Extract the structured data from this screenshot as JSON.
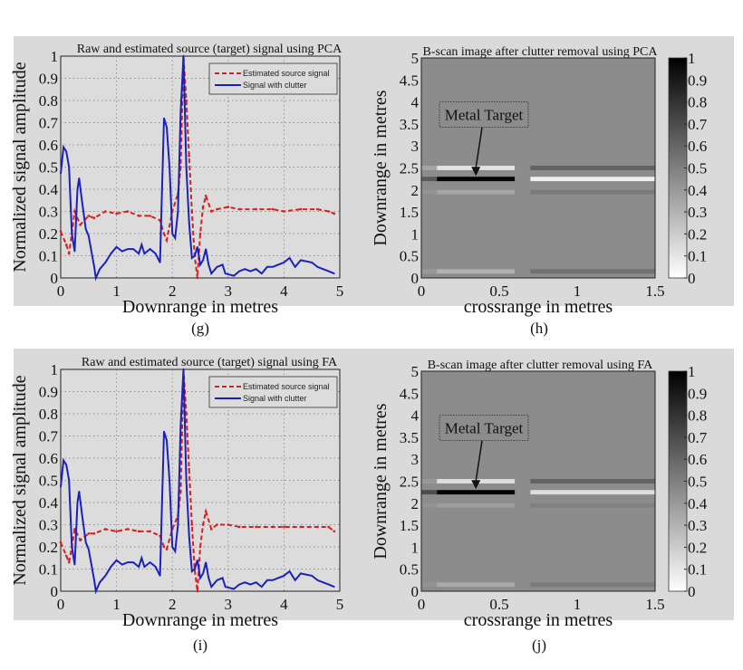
{
  "chart_data": [
    {
      "type": "line",
      "panel_label": "(g)",
      "title": "Raw and estimated source (target) signal using PCA",
      "xlabel": "Downrange in metres",
      "ylabel": "Normalized signal amplitude",
      "xlim": [
        0,
        5
      ],
      "ylim": [
        0,
        1
      ],
      "xticks": [
        "0",
        "1",
        "2",
        "3",
        "4",
        "5"
      ],
      "yticks": [
        "0",
        "0.1",
        "0.2",
        "0.3",
        "0.4",
        "0.5",
        "0.6",
        "0.7",
        "0.8",
        "0.9",
        "1"
      ],
      "grid": true,
      "legend_position": "top-right",
      "series": [
        {
          "name": "Estimated source signal",
          "color": "#d42020",
          "style": "dashed-x",
          "x": [
            0,
            0.1,
            0.15,
            0.2,
            0.25,
            0.35,
            0.5,
            0.6,
            0.8,
            1.0,
            1.2,
            1.4,
            1.6,
            1.78,
            1.85,
            1.9,
            2.0,
            2.1,
            2.15,
            2.2,
            2.25,
            2.3,
            2.35,
            2.4,
            2.45,
            2.5,
            2.55,
            2.6,
            2.7,
            2.8,
            3.0,
            3.2,
            3.5,
            3.8,
            4.0,
            4.3,
            4.6,
            4.8,
            4.9
          ],
          "y": [
            0.21,
            0.15,
            0.11,
            0.2,
            0.3,
            0.24,
            0.28,
            0.27,
            0.3,
            0.29,
            0.3,
            0.28,
            0.28,
            0.26,
            0.2,
            0.17,
            0.3,
            0.38,
            0.5,
            1.0,
            0.8,
            0.55,
            0.3,
            0.1,
            0,
            0.2,
            0.32,
            0.37,
            0.3,
            0.31,
            0.32,
            0.31,
            0.31,
            0.31,
            0.3,
            0.31,
            0.31,
            0.3,
            0.29
          ]
        },
        {
          "name": "Signal with clutter",
          "color": "#1a22b8",
          "style": "solid",
          "x": [
            0,
            0.05,
            0.1,
            0.15,
            0.2,
            0.25,
            0.3,
            0.33,
            0.38,
            0.45,
            0.5,
            0.6,
            0.63,
            0.7,
            0.8,
            0.9,
            1.0,
            1.1,
            1.2,
            1.3,
            1.4,
            1.45,
            1.5,
            1.6,
            1.7,
            1.78,
            1.85,
            1.9,
            1.95,
            2.0,
            2.05,
            2.1,
            2.15,
            2.2,
            2.25,
            2.3,
            2.35,
            2.4,
            2.45,
            2.5,
            2.55,
            2.6,
            2.65,
            2.7,
            2.8,
            2.9,
            2.95,
            3.1,
            3.2,
            3.3,
            3.4,
            3.5,
            3.6,
            3.7,
            3.8,
            3.9,
            4.0,
            4.05,
            4.1,
            4.15,
            4.2,
            4.3,
            4.5,
            4.6,
            4.7,
            4.8,
            4.9
          ],
          "y": [
            0.47,
            0.59,
            0.57,
            0.5,
            0.2,
            0.12,
            0.4,
            0.45,
            0.35,
            0.22,
            0.19,
            0.05,
            0,
            0.04,
            0.07,
            0.11,
            0.14,
            0.12,
            0.13,
            0.13,
            0.11,
            0.15,
            0.11,
            0.13,
            0.11,
            0.07,
            0.72,
            0.68,
            0.5,
            0.2,
            0.18,
            0.3,
            0.75,
            1.0,
            0.5,
            0.25,
            0.09,
            0.1,
            0.14,
            0.06,
            0.08,
            0.13,
            0.06,
            0.02,
            0.05,
            0.06,
            0.02,
            0.01,
            0.03,
            0.04,
            0.03,
            0.04,
            0.02,
            0.05,
            0.05,
            0.06,
            0.07,
            0.08,
            0.09,
            0.07,
            0.05,
            0.08,
            0.07,
            0.05,
            0.04,
            0.03,
            0.02
          ]
        }
      ]
    },
    {
      "type": "heatmap",
      "panel_label": "(h)",
      "title": "B-scan image after clutter removal using PCA",
      "xlabel": "crossrange in metres",
      "ylabel": "Downrange in metres",
      "xlim": [
        0,
        1.5
      ],
      "ylim": [
        0,
        5
      ],
      "xticks": [
        "0",
        "0.5",
        "1",
        "1.5"
      ],
      "yticks": [
        "0",
        "0.5",
        "1",
        "1.5",
        "2",
        "2.5",
        "3",
        "3.5",
        "4",
        "4.5",
        "5"
      ],
      "colorbar": {
        "range": [
          0,
          1
        ],
        "colormap": "gray-reversed",
        "ticks": [
          "0",
          "0.1",
          "0.2",
          "0.3",
          "0.4",
          "0.5",
          "0.6",
          "0.7",
          "0.8",
          "0.9",
          "1"
        ]
      },
      "background_value": 0.45,
      "annotation": {
        "text": "Metal Target",
        "points_to": [
          0.35,
          2.3
        ]
      },
      "crossrange_segments": [
        [
          0,
          0.1
        ],
        [
          0.1,
          0.6
        ],
        [
          0.6,
          0.7
        ],
        [
          0.7,
          1.5
        ]
      ],
      "bands": [
        {
          "downrange": [
            2.45,
            2.55
          ],
          "values": [
            0.35,
            0.1,
            0.45,
            0.62
          ]
        },
        {
          "downrange": [
            2.2,
            2.3
          ],
          "values": [
            0.65,
            1.0,
            0.45,
            0.05
          ]
        },
        {
          "downrange": [
            1.9,
            2.0
          ],
          "values": [
            0.42,
            0.35,
            0.45,
            0.52
          ]
        },
        {
          "downrange": [
            0.1,
            0.2
          ],
          "values": [
            0.4,
            0.3,
            0.45,
            0.56
          ]
        }
      ]
    },
    {
      "type": "line",
      "panel_label": "(i)",
      "title": "Raw and estimated source (target) signal using FA",
      "xlabel": "Downrange in metres",
      "ylabel": "Normalized signal amplitude",
      "xlim": [
        0,
        5
      ],
      "ylim": [
        0,
        1
      ],
      "xticks": [
        "0",
        "1",
        "2",
        "3",
        "4",
        "5"
      ],
      "yticks": [
        "0",
        "0.1",
        "0.2",
        "0.3",
        "0.4",
        "0.5",
        "0.6",
        "0.7",
        "0.8",
        "0.9",
        "1"
      ],
      "grid": true,
      "legend_position": "top-right",
      "series": [
        {
          "name": "Estimated source signal",
          "color": "#d42020",
          "style": "dashed-x",
          "x": [
            0,
            0.1,
            0.15,
            0.2,
            0.25,
            0.35,
            0.5,
            0.6,
            0.8,
            1.0,
            1.2,
            1.4,
            1.6,
            1.78,
            1.85,
            1.9,
            2.0,
            2.1,
            2.15,
            2.2,
            2.25,
            2.3,
            2.35,
            2.4,
            2.45,
            2.5,
            2.55,
            2.6,
            2.7,
            2.8,
            3.0,
            3.2,
            3.5,
            3.8,
            4.0,
            4.3,
            4.6,
            4.8,
            4.9
          ],
          "y": [
            0.22,
            0.16,
            0.13,
            0.2,
            0.28,
            0.23,
            0.26,
            0.26,
            0.28,
            0.27,
            0.28,
            0.27,
            0.27,
            0.25,
            0.2,
            0.19,
            0.28,
            0.34,
            0.45,
            1.0,
            0.8,
            0.55,
            0.3,
            0.1,
            0,
            0.2,
            0.3,
            0.36,
            0.28,
            0.3,
            0.3,
            0.29,
            0.29,
            0.29,
            0.29,
            0.29,
            0.29,
            0.29,
            0.27
          ]
        },
        {
          "name": "Signal with clutter",
          "color": "#1a22b8",
          "style": "solid",
          "x": [
            0,
            0.05,
            0.1,
            0.15,
            0.2,
            0.25,
            0.3,
            0.33,
            0.38,
            0.45,
            0.5,
            0.6,
            0.63,
            0.7,
            0.8,
            0.9,
            1.0,
            1.1,
            1.2,
            1.3,
            1.4,
            1.45,
            1.5,
            1.6,
            1.7,
            1.78,
            1.85,
            1.9,
            1.95,
            2.0,
            2.05,
            2.1,
            2.15,
            2.2,
            2.25,
            2.3,
            2.35,
            2.4,
            2.45,
            2.5,
            2.55,
            2.6,
            2.65,
            2.7,
            2.8,
            2.9,
            2.95,
            3.1,
            3.2,
            3.3,
            3.4,
            3.5,
            3.6,
            3.7,
            3.8,
            3.9,
            4.0,
            4.05,
            4.1,
            4.15,
            4.2,
            4.3,
            4.5,
            4.6,
            4.7,
            4.8,
            4.9
          ],
          "y": [
            0.47,
            0.59,
            0.57,
            0.5,
            0.2,
            0.12,
            0.4,
            0.45,
            0.35,
            0.22,
            0.19,
            0.05,
            0,
            0.04,
            0.07,
            0.11,
            0.14,
            0.12,
            0.13,
            0.13,
            0.11,
            0.15,
            0.11,
            0.13,
            0.11,
            0.07,
            0.72,
            0.68,
            0.5,
            0.2,
            0.18,
            0.3,
            0.75,
            1.0,
            0.5,
            0.25,
            0.09,
            0.1,
            0.14,
            0.06,
            0.08,
            0.13,
            0.06,
            0.02,
            0.05,
            0.06,
            0.02,
            0.01,
            0.03,
            0.04,
            0.03,
            0.04,
            0.02,
            0.05,
            0.05,
            0.06,
            0.07,
            0.08,
            0.09,
            0.07,
            0.05,
            0.08,
            0.07,
            0.05,
            0.04,
            0.03,
            0.02
          ]
        }
      ]
    },
    {
      "type": "heatmap",
      "panel_label": "(j)",
      "title": "B-scan image after clutter removal using FA",
      "xlabel": "crossrange in metres",
      "ylabel": "Downrange in metres",
      "xlim": [
        0,
        1.5
      ],
      "ylim": [
        0,
        5
      ],
      "xticks": [
        "0",
        "0.5",
        "1",
        "1.5"
      ],
      "yticks": [
        "0",
        "0.5",
        "1",
        "1.5",
        "2",
        "2.5",
        "3",
        "3.5",
        "4",
        "4.5",
        "5"
      ],
      "colorbar": {
        "range": [
          0,
          1
        ],
        "colormap": "gray-reversed",
        "ticks": [
          "0",
          "0.1",
          "0.2",
          "0.3",
          "0.4",
          "0.5",
          "0.6",
          "0.7",
          "0.8",
          "0.9",
          "1"
        ]
      },
      "background_value": 0.45,
      "annotation": {
        "text": "Metal Target",
        "points_to": [
          0.35,
          2.3
        ]
      },
      "crossrange_segments": [
        [
          0,
          0.1
        ],
        [
          0.1,
          0.6
        ],
        [
          0.6,
          0.7
        ],
        [
          0.7,
          1.5
        ]
      ],
      "bands": [
        {
          "downrange": [
            2.45,
            2.55
          ],
          "values": [
            0.4,
            0.12,
            0.45,
            0.62
          ]
        },
        {
          "downrange": [
            2.2,
            2.3
          ],
          "values": [
            0.7,
            1.0,
            0.45,
            0.12
          ]
        },
        {
          "downrange": [
            1.9,
            2.0
          ],
          "values": [
            0.42,
            0.38,
            0.45,
            0.5
          ]
        },
        {
          "downrange": [
            0.1,
            0.2
          ],
          "values": [
            0.42,
            0.33,
            0.45,
            0.52
          ]
        }
      ]
    }
  ]
}
